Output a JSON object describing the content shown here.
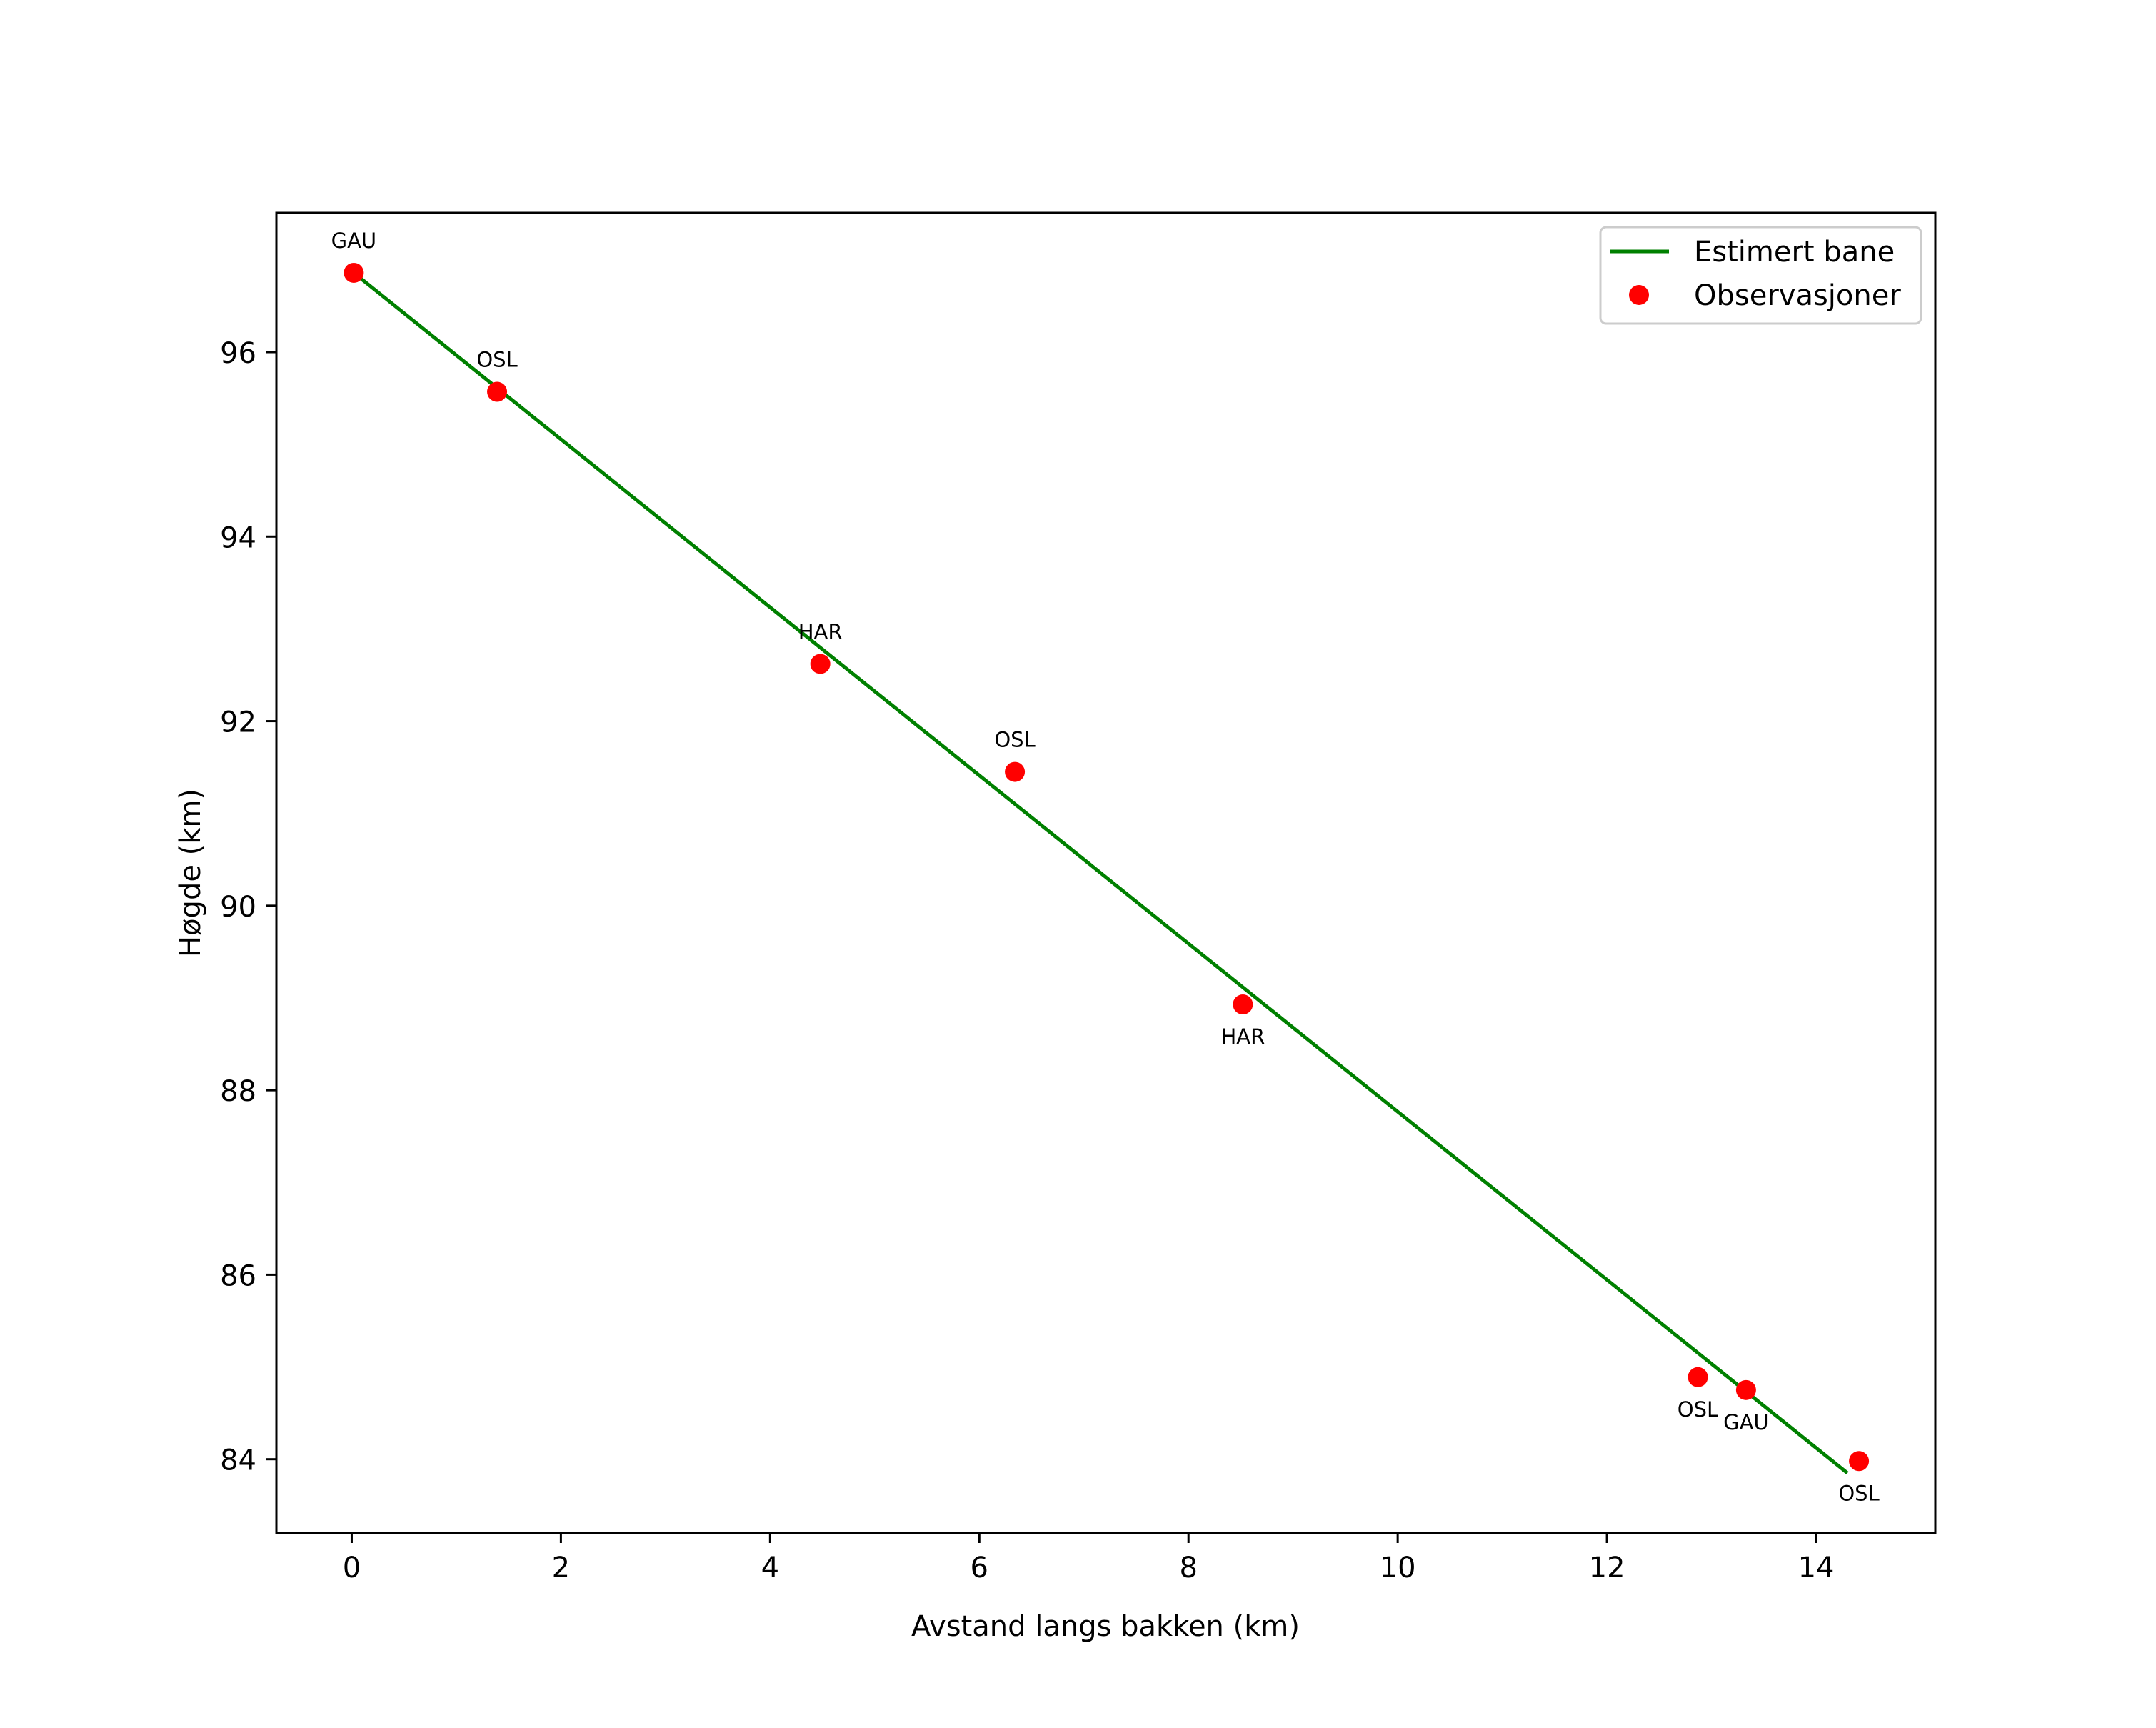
{
  "chart_data": {
    "type": "line",
    "title": "",
    "xlabel": "Avstand langs bakken (km)",
    "ylabel": "Høgde (km)",
    "xlim": [
      -0.72,
      15.14
    ],
    "ylim": [
      83.2,
      97.51
    ],
    "xticks": [
      0,
      2,
      4,
      6,
      8,
      10,
      12,
      14
    ],
    "yticks": [
      84,
      86,
      88,
      90,
      92,
      94,
      96
    ],
    "grid": false,
    "legend_position": "upper right",
    "series": [
      {
        "name": "Estimert bane",
        "type": "line",
        "color": "#008000",
        "x": [
          0.02,
          14.3
        ],
        "y": [
          96.86,
          83.85
        ]
      },
      {
        "name": "Observasjoner",
        "type": "scatter",
        "color": "#ff0000",
        "points": [
          {
            "x": 0.02,
            "y": 96.86,
            "label": "GAU",
            "label_pos": "above"
          },
          {
            "x": 1.39,
            "y": 95.57,
            "label": "OSL",
            "label_pos": "above"
          },
          {
            "x": 4.48,
            "y": 92.62,
            "label": "HAR",
            "label_pos": "above"
          },
          {
            "x": 6.34,
            "y": 91.45,
            "label": "OSL",
            "label_pos": "above"
          },
          {
            "x": 8.52,
            "y": 88.93,
            "label": "HAR",
            "label_pos": "below"
          },
          {
            "x": 12.87,
            "y": 84.89,
            "label": "OSL",
            "label_pos": "below"
          },
          {
            "x": 13.33,
            "y": 84.75,
            "label": "GAU",
            "label_pos": "below"
          },
          {
            "x": 14.41,
            "y": 83.98,
            "label": "OSL",
            "label_pos": "below"
          }
        ]
      }
    ]
  },
  "legend": {
    "items": [
      {
        "label": "Estimert bane",
        "kind": "line",
        "color": "#008000"
      },
      {
        "label": "Observasjoner",
        "kind": "marker",
        "color": "#ff0000"
      }
    ]
  }
}
